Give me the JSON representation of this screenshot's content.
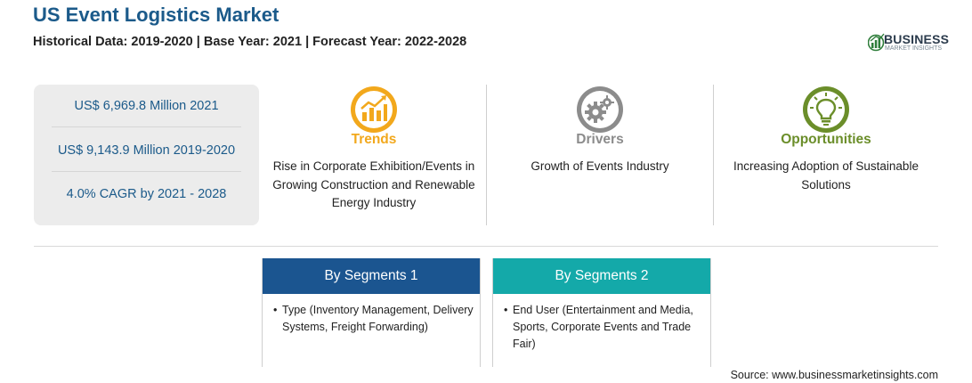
{
  "header": {
    "title": "US Event Logistics Market",
    "subtitle": "Historical Data: 2019-2020 | Base Year: 2021 | Forecast Year: 2022-2028"
  },
  "logo": {
    "word": "BUSINESS",
    "sub": "MARKET INSIGHTS",
    "icon": "business-insights-logo-icon"
  },
  "stats": [
    "US$ 6,969.8 Million 2021",
    "US$ 9,143.9 Million 2019-2020",
    "4.0% CAGR by 2021 - 2028"
  ],
  "cards": [
    {
      "title": "Trends",
      "color": "#f2a81c",
      "icon": "trending-chart-icon",
      "text": "Rise in Corporate Exhibition/Events in Growing Construction and Renewable Energy Industry"
    },
    {
      "title": "Drivers",
      "color": "#8c8c8c",
      "icon": "gears-icon",
      "text": "Growth of Events Industry"
    },
    {
      "title": "Opportunities",
      "color": "#6b8e2a",
      "icon": "lightbulb-icon",
      "text": "Increasing Adoption of Sustainable Solutions"
    }
  ],
  "segments": [
    {
      "title": "By Segments 1",
      "color": "#1b5590",
      "bullet": "•",
      "text": "Type (Inventory Management, Delivery Systems, Freight Forwarding)"
    },
    {
      "title": "By Segments 2",
      "color": "#14a9a9",
      "bullet": "•",
      "text": "End User (Entertainment and Media, Sports, Corporate Events and Trade Fair)"
    }
  ],
  "source": "Source: www.businessmarketinsights.com"
}
